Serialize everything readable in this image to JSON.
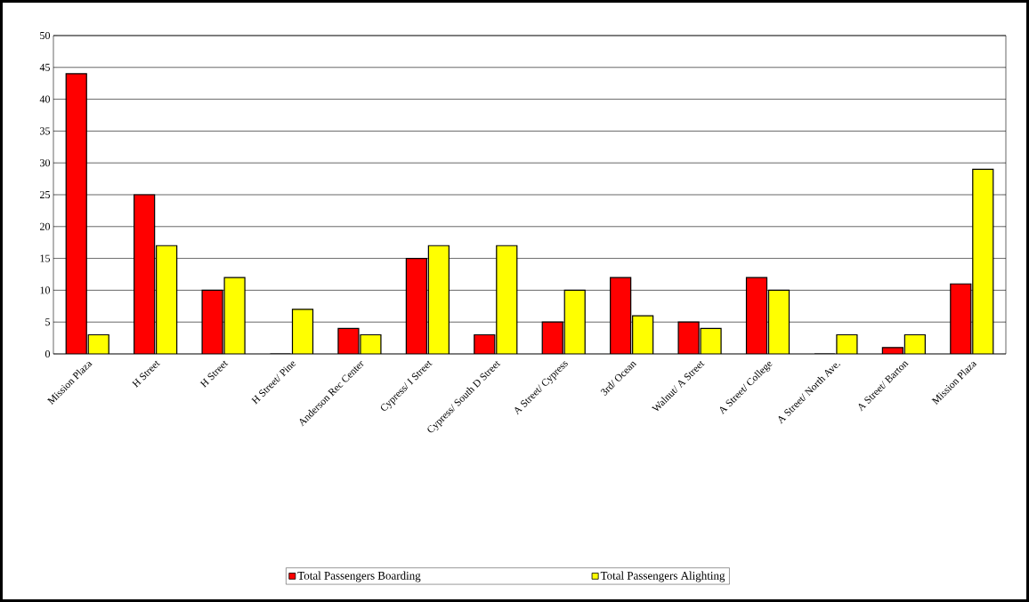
{
  "chart_data": {
    "type": "bar",
    "categories": [
      "Mission Plaza",
      "H Street",
      "H Street",
      "H Street/ Pine",
      "Anderson Rec Center",
      "Cypress/ I Street",
      "Cypress/ South D Street",
      "A Street/ Cypress",
      "3rd/ Ocean",
      "Walnut/ A Street",
      "A Street/ College",
      "A Street/ North Ave.",
      "A Street/ Barton",
      "Mission Plaza"
    ],
    "series": [
      {
        "name": "Total Passengers Boarding",
        "color": "#ff0000",
        "values": [
          44,
          25,
          10,
          0,
          4,
          15,
          3,
          5,
          12,
          5,
          12,
          0,
          1,
          11
        ]
      },
      {
        "name": "Total Passengers Alighting",
        "color": "#ffff00",
        "values": [
          3,
          17,
          12,
          7,
          3,
          17,
          17,
          10,
          6,
          4,
          10,
          3,
          3,
          29
        ]
      }
    ],
    "ylim": [
      0,
      50
    ],
    "yticks": [
      0,
      5,
      10,
      15,
      20,
      25,
      30,
      35,
      40,
      45,
      50
    ],
    "grid": "y",
    "legend": "bottom"
  }
}
